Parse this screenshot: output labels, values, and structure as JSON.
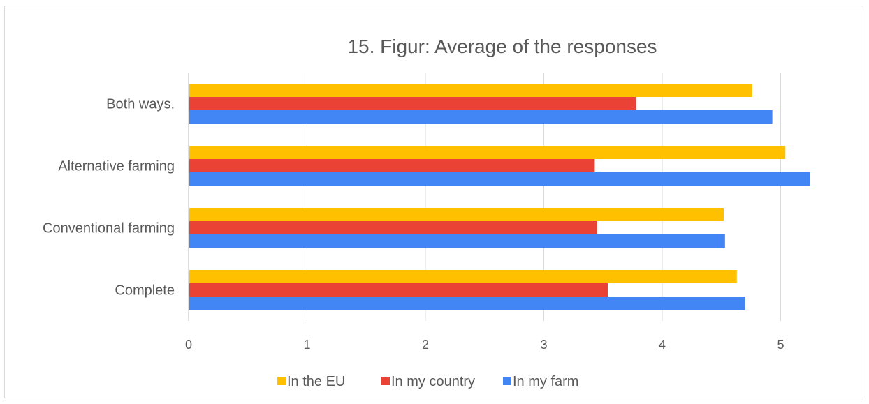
{
  "chart_data": {
    "type": "bar",
    "orientation": "horizontal",
    "title": "15. Figur: Average of the responses",
    "categories": [
      "Both ways.",
      "Alternative farming",
      "Conventional farming",
      "Complete"
    ],
    "series": [
      {
        "name": "In the EU",
        "color": "#FFC000",
        "values": [
          4.76,
          5.04,
          4.52,
          4.63
        ]
      },
      {
        "name": "In my country",
        "color": "#EA4335",
        "values": [
          3.78,
          3.43,
          3.45,
          3.54
        ]
      },
      {
        "name": "In my farm",
        "color": "#4285F4",
        "values": [
          4.93,
          5.25,
          4.53,
          4.7
        ]
      }
    ],
    "xlim": [
      0,
      6
    ],
    "xticks": [
      "0",
      "1",
      "2",
      "3",
      "4",
      "5"
    ],
    "grid": true,
    "legend_position": "bottom"
  }
}
